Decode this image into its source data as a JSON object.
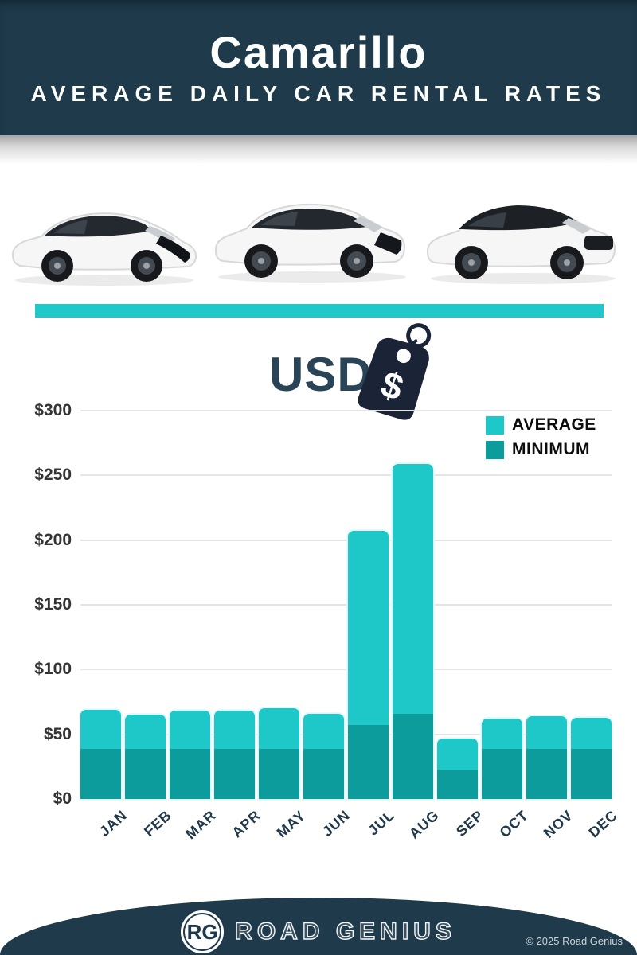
{
  "header": {
    "title": "Camarillo",
    "subtitle": "AVERAGE DAILY CAR RENTAL RATES"
  },
  "hero": {
    "car_icons": [
      "white-hatchback-car",
      "white-suv-car",
      "white-suv-black-roof-car"
    ]
  },
  "currency": {
    "label": "USD",
    "symbol": "$",
    "icon": "price-tag-dollar-icon"
  },
  "chart_data": {
    "type": "bar",
    "title": "Camarillo Average Daily Car Rental Rates (USD)",
    "categories": [
      "JAN",
      "FEB",
      "MAR",
      "APR",
      "MAY",
      "JUN",
      "JUL",
      "AUG",
      "SEP",
      "OCT",
      "NOV",
      "DEC"
    ],
    "series": [
      {
        "name": "AVERAGE",
        "color": "#1fc8c8",
        "values": [
          69,
          65,
          68,
          68,
          70,
          66,
          207,
          259,
          47,
          62,
          64,
          63
        ]
      },
      {
        "name": "MINIMUM",
        "color": "#0d9c9c",
        "values": [
          39,
          39,
          39,
          39,
          39,
          39,
          57,
          66,
          23,
          39,
          39,
          39
        ]
      }
    ],
    "ylabel": "USD",
    "ylim": [
      0,
      300
    ],
    "ytick_step": 50,
    "ytick_labels": [
      "$0",
      "$50",
      "$100",
      "$150",
      "$200",
      "$250",
      "$300"
    ],
    "grid": true,
    "legend_position": "top-right",
    "bar_style": "overlay"
  },
  "footer": {
    "logo_monogram": "RG",
    "brand": "ROAD GENIUS",
    "copyright": "© 2025 Road Genius"
  },
  "colors": {
    "navy": "#1e3a4b",
    "tag_navy": "#1b2437",
    "teal_average": "#1fc8c8",
    "teal_minimum": "#0d9c9c",
    "gridline": "#e5e5e5"
  }
}
